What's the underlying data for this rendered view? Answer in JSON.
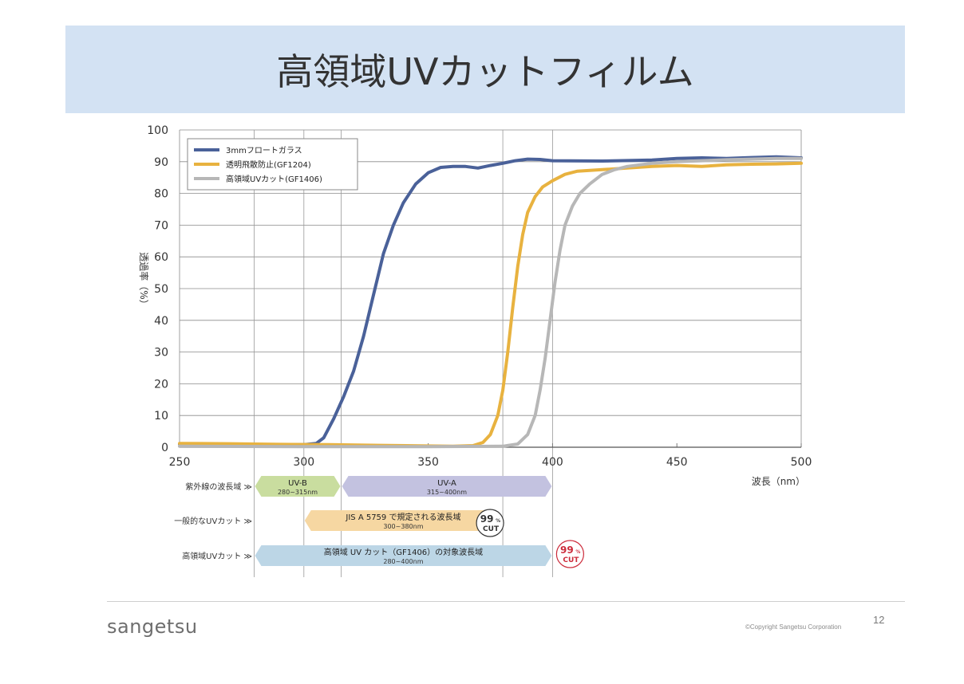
{
  "slide": {
    "title": "高領域UVカットフィルム",
    "logo": "sangetsu",
    "copyright": "©Copyright Sangetsu Corporation",
    "page_number": "12"
  },
  "chart_data": {
    "type": "line",
    "title": "",
    "xlabel": "波長（nm）",
    "ylabel": "透過率（%）",
    "xlim": [
      250,
      500
    ],
    "ylim": [
      0,
      100
    ],
    "x_ticks": [
      250,
      300,
      350,
      400,
      450,
      500
    ],
    "y_ticks": [
      0,
      10,
      20,
      30,
      40,
      50,
      60,
      70,
      80,
      90,
      100
    ],
    "grid": true,
    "legend_position": "top-left",
    "series": [
      {
        "name": "3mmフロートガラス",
        "color": "#4a6199",
        "points": [
          [
            250,
            1.0
          ],
          [
            270,
            0.9
          ],
          [
            290,
            0.8
          ],
          [
            300,
            0.8
          ],
          [
            305,
            1.2
          ],
          [
            308,
            3
          ],
          [
            312,
            9
          ],
          [
            316,
            16
          ],
          [
            320,
            24
          ],
          [
            324,
            35
          ],
          [
            328,
            48
          ],
          [
            332,
            61
          ],
          [
            336,
            70
          ],
          [
            340,
            77
          ],
          [
            345,
            83
          ],
          [
            350,
            86.5
          ],
          [
            355,
            88.2
          ],
          [
            360,
            88.5
          ],
          [
            365,
            88.5
          ],
          [
            370,
            88
          ],
          [
            375,
            88.8
          ],
          [
            380,
            89.5
          ],
          [
            385,
            90.3
          ],
          [
            390,
            90.8
          ],
          [
            395,
            90.7
          ],
          [
            400,
            90.3
          ],
          [
            420,
            90.2
          ],
          [
            440,
            90.5
          ],
          [
            450,
            91
          ],
          [
            460,
            91.2
          ],
          [
            470,
            91
          ],
          [
            480,
            91.3
          ],
          [
            490,
            91.5
          ],
          [
            500,
            91.2
          ]
        ]
      },
      {
        "name": "透明飛散防止(GF1204)",
        "color": "#e8b23f",
        "points": [
          [
            250,
            1.2
          ],
          [
            270,
            1.1
          ],
          [
            290,
            0.9
          ],
          [
            310,
            0.8
          ],
          [
            330,
            0.6
          ],
          [
            350,
            0.4
          ],
          [
            360,
            0.3
          ],
          [
            368,
            0.5
          ],
          [
            372,
            1.5
          ],
          [
            375,
            4
          ],
          [
            378,
            10
          ],
          [
            380,
            18
          ],
          [
            382,
            30
          ],
          [
            384,
            44
          ],
          [
            386,
            57
          ],
          [
            388,
            67
          ],
          [
            390,
            74
          ],
          [
            393,
            79
          ],
          [
            396,
            82
          ],
          [
            400,
            84
          ],
          [
            405,
            86
          ],
          [
            410,
            87
          ],
          [
            420,
            87.5
          ],
          [
            430,
            88
          ],
          [
            440,
            88.5
          ],
          [
            450,
            88.8
          ],
          [
            460,
            88.5
          ],
          [
            470,
            89
          ],
          [
            480,
            89.2
          ],
          [
            490,
            89.3
          ],
          [
            500,
            89.5
          ]
        ]
      },
      {
        "name": "高領域UVカット(GF1406)",
        "color": "#b7b7b7",
        "points": [
          [
            250,
            0.3
          ],
          [
            300,
            0.2
          ],
          [
            350,
            0.2
          ],
          [
            380,
            0.3
          ],
          [
            386,
            1
          ],
          [
            390,
            4
          ],
          [
            393,
            10
          ],
          [
            395,
            18
          ],
          [
            397,
            28
          ],
          [
            399,
            40
          ],
          [
            401,
            52
          ],
          [
            403,
            62
          ],
          [
            405,
            70
          ],
          [
            408,
            76
          ],
          [
            411,
            80
          ],
          [
            415,
            83
          ],
          [
            420,
            86
          ],
          [
            425,
            87.5
          ],
          [
            430,
            88.5
          ],
          [
            440,
            89.5
          ],
          [
            450,
            90
          ],
          [
            460,
            90.3
          ],
          [
            470,
            90.6
          ],
          [
            480,
            90.8
          ],
          [
            490,
            91
          ],
          [
            500,
            91
          ]
        ]
      }
    ],
    "uv_ranges": [
      {
        "row_label": "紫外線の波長域 ≫",
        "bands": [
          {
            "label": "UV-B",
            "sublabel": "280~315nm",
            "start": 280,
            "end": 315,
            "color": "#c9dd9f"
          },
          {
            "label": "UV-A",
            "sublabel": "315~400nm",
            "start": 315,
            "end": 400,
            "color": "#c3c2e0"
          }
        ]
      },
      {
        "row_label": "一般的なUVカット ≫",
        "bands": [
          {
            "label": "JIS A 5759 で規定される波長域",
            "sublabel": "300~380nm",
            "start": 300,
            "end": 380,
            "color": "#f6d7a2"
          }
        ],
        "badge": {
          "value": "99",
          "unit": "%",
          "text": "CUT",
          "color": "#333333"
        }
      },
      {
        "row_label": "高領域UVカット ≫",
        "bands": [
          {
            "label": "高領域 UV カット（GF1406）の対象波長域",
            "sublabel": "280~400nm",
            "start": 280,
            "end": 400,
            "color": "#bcd6e6"
          }
        ],
        "badge": {
          "value": "99",
          "unit": "%",
          "text": "CUT",
          "color": "#cc2b3a"
        }
      }
    ]
  }
}
